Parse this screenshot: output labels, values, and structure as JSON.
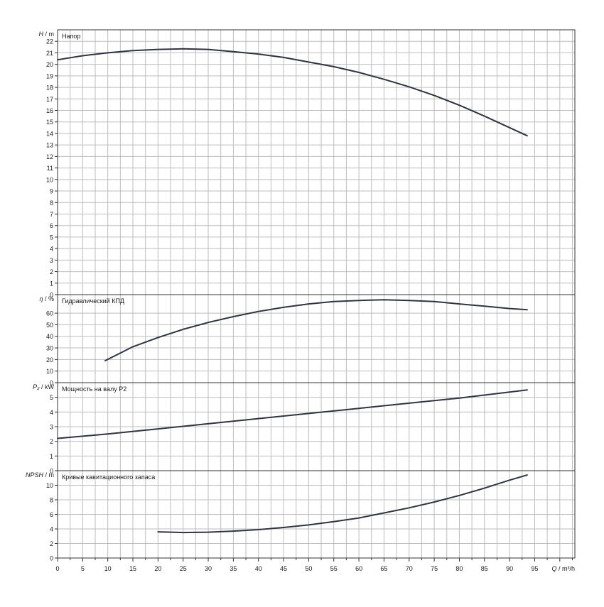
{
  "chart_data": [
    {
      "type": "line",
      "title": "Напор",
      "ylabel_symbol": "H",
      "ylabel_unit": "m",
      "ylim": [
        0,
        23
      ],
      "yticks": [
        0,
        1,
        2,
        3,
        4,
        5,
        6,
        7,
        8,
        9,
        10,
        11,
        12,
        13,
        14,
        15,
        16,
        17,
        18,
        19,
        20,
        21,
        22
      ],
      "series": [
        {
          "x": [
            0,
            5,
            10,
            15,
            20,
            25,
            30,
            35,
            40,
            45,
            50,
            55,
            60,
            65,
            70,
            75,
            80,
            85,
            90,
            93.5
          ],
          "y": [
            20.4,
            20.75,
            21.0,
            21.2,
            21.3,
            21.35,
            21.3,
            21.1,
            20.9,
            20.6,
            20.2,
            19.8,
            19.3,
            18.7,
            18.05,
            17.3,
            16.45,
            15.5,
            14.5,
            13.8
          ]
        }
      ]
    },
    {
      "type": "line",
      "title": "Гидравлический КПД",
      "ylabel_symbol": "η",
      "ylabel_unit": "%",
      "ylim": [
        0,
        76
      ],
      "yticks": [
        0,
        10,
        20,
        30,
        40,
        50,
        60
      ],
      "series": [
        {
          "x": [
            9.5,
            15,
            20,
            25,
            30,
            35,
            40,
            45,
            50,
            55,
            60,
            65,
            70,
            75,
            80,
            85,
            90,
            93.5
          ],
          "y": [
            19,
            31,
            39,
            46,
            52,
            57,
            61.5,
            65,
            68,
            70,
            71,
            71.5,
            71,
            70,
            68,
            66,
            64,
            63
          ]
        }
      ]
    },
    {
      "type": "line",
      "title": "Мощность на валу P2",
      "ylabel_symbol": "P₂",
      "ylabel_unit": "kW",
      "ylim": [
        0,
        6
      ],
      "yticks": [
        0,
        1,
        2,
        3,
        4,
        5
      ],
      "series": [
        {
          "x": [
            0,
            10,
            20,
            30,
            40,
            50,
            60,
            70,
            80,
            93.5
          ],
          "y": [
            2.2,
            2.5,
            2.85,
            3.2,
            3.55,
            3.9,
            4.25,
            4.6,
            4.95,
            5.5
          ]
        }
      ]
    },
    {
      "type": "line",
      "title": "Кривые кавитационного запаса",
      "ylabel_symbol": "NPSH",
      "ylabel_unit": "m",
      "ylim": [
        0,
        12
      ],
      "yticks": [
        0,
        2,
        4,
        6,
        8,
        10
      ],
      "series": [
        {
          "x": [
            20,
            25,
            30,
            35,
            40,
            45,
            50,
            55,
            60,
            65,
            70,
            75,
            80,
            85,
            90,
            93.5
          ],
          "y": [
            3.6,
            3.5,
            3.55,
            3.7,
            3.9,
            4.2,
            4.55,
            5.0,
            5.5,
            6.2,
            6.9,
            7.7,
            8.6,
            9.6,
            10.7,
            11.4
          ]
        }
      ]
    }
  ],
  "x_axis": {
    "symbol": "Q",
    "unit": "m³/h",
    "xlim": [
      0,
      103
    ],
    "ticks": [
      0,
      5,
      10,
      15,
      20,
      25,
      30,
      35,
      40,
      45,
      50,
      55,
      60,
      65,
      70,
      75,
      80,
      85,
      90,
      95
    ]
  },
  "colors": {
    "grid": "#bdbdbd",
    "frame": "#333333",
    "curve": "#2f3540"
  }
}
